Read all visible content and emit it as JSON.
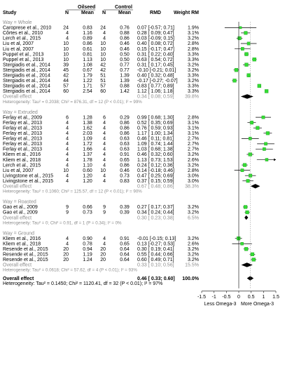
{
  "chart_data": {
    "type": "forest",
    "columns": {
      "study": "Study",
      "group_oilseed": "Oilseed",
      "group_control": "Control",
      "n": "N",
      "mean": "Mean",
      "effect": "RMD",
      "weight": "Weight RM"
    },
    "xlim": [
      -1.5,
      1.5
    ],
    "x_ticks": [
      "-1.5",
      "-1",
      "-0.5",
      "0",
      "0.5",
      "1",
      "1.5"
    ],
    "x_tick_values": [
      -1.5,
      -1.0,
      -0.5,
      0,
      0.5,
      1.0,
      1.5
    ],
    "direction_labels": {
      "left": "Less Omega-3",
      "right": "More Omega-3"
    },
    "colors": {
      "square": "#33dd33",
      "square_edge": "#229922",
      "diamond": "#000000",
      "grey_text": "#8c8c8c",
      "reference_line": "#000000"
    },
    "groups": [
      {
        "header": "Way = Whole",
        "studies": [
          {
            "study": "Caroprese et al., 2010",
            "n1": "24",
            "m1": "0.83",
            "n2": "24",
            "m2": "0.76",
            "ci_text": "0.07 [-0.57; 0.71]",
            "weight": "1.9%",
            "est": 0.07,
            "lo": -0.57,
            "hi": 0.71
          },
          {
            "study": "Côrtes et al., 2010",
            "n1": "4",
            "m1": "1.16",
            "n2": "4",
            "m2": "0.88",
            "ci_text": "0.28 [ 0.09; 0.47]",
            "weight": "3.1%",
            "est": 0.28,
            "lo": 0.09,
            "hi": 0.47
          },
          {
            "study": "Lerch et al., 2015",
            "n1": "4",
            "m1": "0.89",
            "n2": "4",
            "m2": "0.86",
            "ci_text": "0.03 [-0.09; 0.15]",
            "weight": "3.2%",
            "est": 0.03,
            "lo": -0.09,
            "hi": 0.15
          },
          {
            "study": "Liu et al, 2007",
            "n1": "10",
            "m1": "0.86",
            "n2": "10",
            "m2": "0.46",
            "ci_text": "0.40 [ 0.08; 0.72]",
            "weight": "2.8%",
            "est": 0.4,
            "lo": 0.08,
            "hi": 0.72
          },
          {
            "study": "Liu et al, 2007",
            "n1": "10",
            "m1": "0.61",
            "n2": "10",
            "m2": "0.46",
            "ci_text": "0.15 [-0.17; 0.47]",
            "weight": "2.8%",
            "est": 0.15,
            "lo": -0.17,
            "hi": 0.47
          },
          {
            "study": "Puppel et al., 2013",
            "n1": "10",
            "m1": "0.81",
            "n2": "10",
            "m2": "0.50",
            "ci_text": "0.31 [ 0.22; 0.40]",
            "weight": "3.3%",
            "est": 0.31,
            "lo": 0.22,
            "hi": 0.4
          },
          {
            "study": "Puppel et al., 2013",
            "n1": "10",
            "m1": "1.13",
            "n2": "10",
            "m2": "0.50",
            "ci_text": "0.63 [ 0.54; 0.72]",
            "weight": "3.3%",
            "est": 0.63,
            "lo": 0.54,
            "hi": 0.72
          },
          {
            "study": "Stergiadis et al., 2014",
            "n1": "39",
            "m1": "1.08",
            "n2": "42",
            "m2": "0.77",
            "ci_text": "0.31 [ 0.17; 0.45]",
            "weight": "3.2%",
            "est": 0.31,
            "lo": 0.17,
            "hi": 0.45
          },
          {
            "study": "Stergiadis et al., 2014",
            "n1": "45",
            "m1": "0.67",
            "n2": "42",
            "m2": "0.77",
            "ci_text": "-0.10 [-0.21; 0.01]",
            "weight": "3.2%",
            "est": -0.1,
            "lo": -0.21,
            "hi": 0.01
          },
          {
            "study": "Stergiadis et al., 2014",
            "n1": "42",
            "m1": "1.79",
            "n2": "51",
            "m2": "1.39",
            "ci_text": "0.40 [ 0.32; 0.48]",
            "weight": "3.3%",
            "est": 0.4,
            "lo": 0.32,
            "hi": 0.48
          },
          {
            "study": "Stergiadis et al., 2014",
            "n1": "44",
            "m1": "1.22",
            "n2": "51",
            "m2": "1.39",
            "ci_text": "-0.17 [-0.27; -0.07]",
            "weight": "3.2%",
            "est": -0.17,
            "lo": -0.27,
            "hi": -0.07
          },
          {
            "study": "Stergiadis et al., 2014",
            "n1": "57",
            "m1": "1.71",
            "n2": "57",
            "m2": "0.88",
            "ci_text": "0.83 [ 0.77; 0.89]",
            "weight": "3.3%",
            "est": 0.83,
            "lo": 0.77,
            "hi": 0.89
          },
          {
            "study": "Stergiadis et al., 2014",
            "n1": "60",
            "m1": "2.54",
            "n2": "60",
            "m2": "1.42",
            "ci_text": "1.12 [ 1.06; 1.18]",
            "weight": "3.3%",
            "est": 1.12,
            "lo": 1.06,
            "hi": 1.18
          }
        ],
        "overall": {
          "label": "Overall effect",
          "ci_text": "0.34 [ 0.08; 0.59]",
          "weight": "39.8%",
          "est": 0.34,
          "lo": 0.08,
          "hi": 0.59
        },
        "heterogeneity": "Heterogeneity: Tau² = 0.2038; Chi² = 876.31, df = 12 (P < 0.01); I² = 99%"
      },
      {
        "header": "Way = Extruded",
        "studies": [
          {
            "study": "Ferlay et al., 2009",
            "n1": "6",
            "m1": "1.28",
            "n2": "6",
            "m2": "0.29",
            "ci_text": "0.99 [ 0.68; 1.30]",
            "weight": "2.8%",
            "est": 0.99,
            "lo": 0.68,
            "hi": 1.3
          },
          {
            "study": "Ferlay et al., 2013",
            "n1": "4",
            "m1": "1.38",
            "n2": "4",
            "m2": "0.86",
            "ci_text": "0.52 [ 0.35; 0.69]",
            "weight": "3.1%",
            "est": 0.52,
            "lo": 0.35,
            "hi": 0.69
          },
          {
            "study": "Ferlay et al., 2013",
            "n1": "4",
            "m1": "1.62",
            "n2": "4",
            "m2": "0.86",
            "ci_text": "0.76 [ 0.59; 0.93]",
            "weight": "3.1%",
            "est": 0.76,
            "lo": 0.59,
            "hi": 0.93
          },
          {
            "study": "Ferlay et al., 2013",
            "n1": "4",
            "m1": "2.03",
            "n2": "4",
            "m2": "0.86",
            "ci_text": "1.17 [ 1.00; 1.34]",
            "weight": "3.1%",
            "est": 1.17,
            "lo": 1.0,
            "hi": 1.34
          },
          {
            "study": "Ferlay et al., 2013",
            "n1": "4",
            "m1": "1.09",
            "n2": "4",
            "m2": "0.63",
            "ci_text": "0.46 [ 0.11; 0.81]",
            "weight": "2.7%",
            "est": 0.46,
            "lo": 0.11,
            "hi": 0.81
          },
          {
            "study": "Ferlay et al., 2013",
            "n1": "4",
            "m1": "1.72",
            "n2": "4",
            "m2": "0.63",
            "ci_text": "1.09 [ 0.74; 1.44]",
            "weight": "2.7%",
            "est": 1.09,
            "lo": 0.74,
            "hi": 1.44
          },
          {
            "study": "Ferlay et al., 2013",
            "n1": "4",
            "m1": "1.66",
            "n2": "4",
            "m2": "0.63",
            "ci_text": "1.03 [ 0.68; 1.38]",
            "weight": "2.7%",
            "est": 1.03,
            "lo": 0.68,
            "hi": 1.38
          },
          {
            "study": "Kliem et al., 2016",
            "n1": "4",
            "m1": "1.37",
            "n2": "4",
            "m2": "0.91",
            "ci_text": "0.46 [ 0.32; 0.60]",
            "weight": "3.2%",
            "est": 0.46,
            "lo": 0.32,
            "hi": 0.6
          },
          {
            "study": "Kliem et al., 2018",
            "n1": "4",
            "m1": "1.78",
            "n2": "4",
            "m2": "0.65",
            "ci_text": "1.13 [ 0.73; 1.53]",
            "weight": "2.6%",
            "est": 1.13,
            "lo": 0.73,
            "hi": 1.53
          },
          {
            "study": "Lerch et al., 2015",
            "n1": "4",
            "m1": "1.10",
            "n2": "4",
            "m2": "0.86",
            "ci_text": "0.24 [ 0.12; 0.36]",
            "weight": "3.2%",
            "est": 0.24,
            "lo": 0.12,
            "hi": 0.36
          },
          {
            "study": "Liu et al, 2007",
            "n1": "10",
            "m1": "0.60",
            "n2": "10",
            "m2": "0.46",
            "ci_text": "0.14 [-0.18; 0.46]",
            "weight": "2.8%",
            "est": 0.14,
            "lo": -0.18,
            "hi": 0.46
          },
          {
            "study": "Livingstone et al., 2015",
            "n1": "4",
            "m1": "1.20",
            "n2": "4",
            "m2": "0.73",
            "ci_text": "0.47 [ 0.25; 0.69]",
            "weight": "3.0%",
            "est": 0.47,
            "lo": 0.25,
            "hi": 0.69
          },
          {
            "study": "Livingstone et al., 2015",
            "n1": "4",
            "m1": "1.20",
            "n2": "4",
            "m2": "0.83",
            "ci_text": "0.37 [ 0.15; 0.59]",
            "weight": "3.0%",
            "est": 0.37,
            "lo": 0.15,
            "hi": 0.59
          }
        ],
        "overall": {
          "label": "Overall effect",
          "ci_text": "0.67 [ 0.48; 0.86]",
          "weight": "38.3%",
          "est": 0.67,
          "lo": 0.48,
          "hi": 0.86
        },
        "heterogeneity": "Heterogeneity: Tau² = 0.1060; Chi² = 125.57, df = 12 (P < 0.01); I² = 90%"
      },
      {
        "header": "Way = Roasted",
        "studies": [
          {
            "study": "Gao et al., 2009",
            "n1": "9",
            "m1": "0.66",
            "n2": "9",
            "m2": "0.39",
            "ci_text": "0.27 [ 0.17; 0.37]",
            "weight": "3.2%",
            "est": 0.27,
            "lo": 0.17,
            "hi": 0.37
          },
          {
            "study": "Gao et al., 2009",
            "n1": "9",
            "m1": "0.73",
            "n2": "9",
            "m2": "0.39",
            "ci_text": "0.34 [ 0.24; 0.44]",
            "weight": "3.2%",
            "est": 0.34,
            "lo": 0.24,
            "hi": 0.44
          }
        ],
        "overall": {
          "label": "Overall effect",
          "ci_text": "0.30 [ 0.23; 0.38]",
          "weight": "6.5%",
          "est": 0.3,
          "lo": 0.23,
          "hi": 0.38
        },
        "heterogeneity": "Heterogeneity: Tau² = 0; Chi² = 0.91, df = 1 (P = 0.34); I² = 0%"
      },
      {
        "header": "Way = Ground",
        "studies": [
          {
            "study": "Kliem et al., 2016",
            "n1": "4",
            "m1": "0.90",
            "n2": "4",
            "m2": "0.91",
            "ci_text": "-0.01 [-0.15; 0.13]",
            "weight": "3.2%",
            "est": -0.01,
            "lo": -0.15,
            "hi": 0.13
          },
          {
            "study": "Kliem et al., 2018",
            "n1": "4",
            "m1": "0.78",
            "n2": "4",
            "m2": "0.65",
            "ci_text": "0.13 [-0.27; 0.53]",
            "weight": "2.6%",
            "est": 0.13,
            "lo": -0.27,
            "hi": 0.53
          },
          {
            "study": "Resende et al., 2015",
            "n1": "20",
            "m1": "0.94",
            "n2": "20",
            "m2": "0.64",
            "ci_text": "0.30 [ 0.19; 0.41]",
            "weight": "3.2%",
            "est": 0.3,
            "lo": 0.19,
            "hi": 0.41
          },
          {
            "study": "Resende et al., 2015",
            "n1": "20",
            "m1": "1.19",
            "n2": "20",
            "m2": "0.64",
            "ci_text": "0.55 [ 0.44; 0.66]",
            "weight": "3.2%",
            "est": 0.55,
            "lo": 0.44,
            "hi": 0.66
          },
          {
            "study": "Resende et al., 2015",
            "n1": "20",
            "m1": "1.24",
            "n2": "20",
            "m2": "0.64",
            "ci_text": "0.60 [ 0.49; 0.71]",
            "weight": "3.2%",
            "est": 0.6,
            "lo": 0.49,
            "hi": 0.71
          }
        ],
        "overall": {
          "label": "Overall effect",
          "ci_text": "0.33 [ 0.10; 0.56]",
          "weight": "15.5%",
          "est": 0.33,
          "lo": 0.1,
          "hi": 0.56
        },
        "heterogeneity": "Heterogeneity: Tau² = 0.0618; Chi² = 57.62, df = 4 (P < 0.01); I² = 93%"
      }
    ],
    "overall": {
      "label": "Overall effect",
      "ci_text": "0.46 [ 0.33; 0.60]",
      "weight": "100.0%",
      "est": 0.46,
      "lo": 0.33,
      "hi": 0.6
    },
    "heterogeneity": "Heterogeneity: Tau² = 0.1450; Chi² = 1120.41, df = 32 (P < 0.01); I² = 97%"
  }
}
